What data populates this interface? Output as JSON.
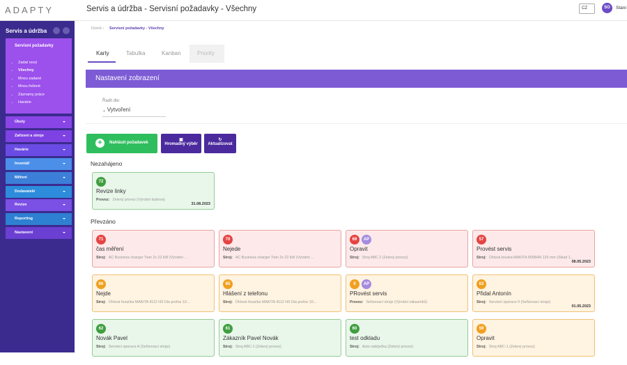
{
  "logo": "ADAPTY",
  "header": {
    "title": "Servis a údržba - Servisní požadavky - Všechny",
    "language": "CZ",
    "avatar": "SO",
    "user": "Stani"
  },
  "sidebar": {
    "title": "Servis a údržba",
    "open": {
      "label": "Servisní požadavky",
      "items": [
        "Zadat nový",
        "Všechny",
        "Mnou zadané",
        "Mnou řešené",
        "Záznamy práce",
        "Havárie"
      ]
    },
    "sections": [
      "Úkoly",
      "Zařízení a stroje",
      "Havárie",
      "Inventář",
      "Měření",
      "Dodavatelé",
      "Revize",
      "Reporting",
      "Nastavení"
    ]
  },
  "breadcrumb": [
    "Domů",
    "Servisní požadavky - Všechny"
  ],
  "tabs": [
    "Karty",
    "Tabulka",
    "Kanban",
    "Priority"
  ],
  "settings": {
    "title": "Nastavení zobrazení",
    "sort_label": "Řadit dle:",
    "sort_value": "Vytvoření"
  },
  "buttons": [
    "Nahlásit požadavek",
    "Hromadný výběr",
    "Aktualizovat"
  ],
  "groups": [
    {
      "title": "Nezahájeno",
      "cards": [
        {
          "id": 72,
          "title": "Revize linky",
          "field": "Provoz:",
          "text": "Zelený provoz (Výrobní budova)",
          "date": "31.08.2023",
          "color": "green"
        }
      ]
    },
    {
      "title": "Převzáno",
      "cards": [
        {
          "id": 71,
          "title": "čas měření",
          "field": "Stroj:",
          "text": "AC Business charger Twin 2x 22 kW (Výrobní ...",
          "color": "red"
        },
        {
          "id": 70,
          "title": "Nejede",
          "field": "Stroj:",
          "text": "AC Business charger Twin 2x 22 kW (Výrobní ...",
          "color": "red"
        },
        {
          "id": 69,
          "badge": "AP",
          "title": "Opravit",
          "field": "Stroj:",
          "text": "Stroj ABC 2 (Zelený provoz)",
          "color": "red"
        },
        {
          "id": 57,
          "title": "Provést servis",
          "field": "Stroj:",
          "text": "Úhlová bruska MAKITA 9558HN 125 mm (Sklad 1...",
          "date": "08.05.2023",
          "color": "red"
        },
        {
          "id": 66,
          "title": "Nejde",
          "field": "Stroj:",
          "text": "Úhlová řezačka MAKITA 4112 HS Dia prořez 10...",
          "color": "orange"
        },
        {
          "id": 65,
          "title": "Hlášení z telefonu",
          "field": "Stroj:",
          "text": "Úhlová řezačka MAKITA 4112 HS Dia prořez 10...",
          "color": "orange"
        },
        {
          "id": 0,
          "badge": "AP",
          "title": "PRovést servis",
          "field": "Provoz:",
          "text": "Seřizovací stroje (Výrobní zákazníků)",
          "color": "orange"
        },
        {
          "id": 63,
          "title": "Přidal Antonín",
          "field": "Stroj:",
          "text": "Servisní operace 0 (Seřizovací stroje)",
          "date": "01.05.2023",
          "color": "orange"
        },
        {
          "id": 62,
          "title": "Novák Pavel",
          "field": "Stroj:",
          "text": "Servisní operace A (Seřizovací stroje)",
          "color": "green"
        },
        {
          "id": 61,
          "title": "Zákazník Pavel Novák",
          "field": "Stroj:",
          "text": "Stroj ABC-1 (Zelený provoz)",
          "color": "green"
        },
        {
          "id": 60,
          "title": "test odkladu",
          "field": "Stroj:",
          "text": "Auto nabíječka (Zelený provoz)",
          "color": "green"
        },
        {
          "id": 59,
          "title": "Opravit",
          "field": "Stroj:",
          "text": "Stroj ABC-1 (Zelený provoz)",
          "color": "orange"
        }
      ]
    }
  ]
}
